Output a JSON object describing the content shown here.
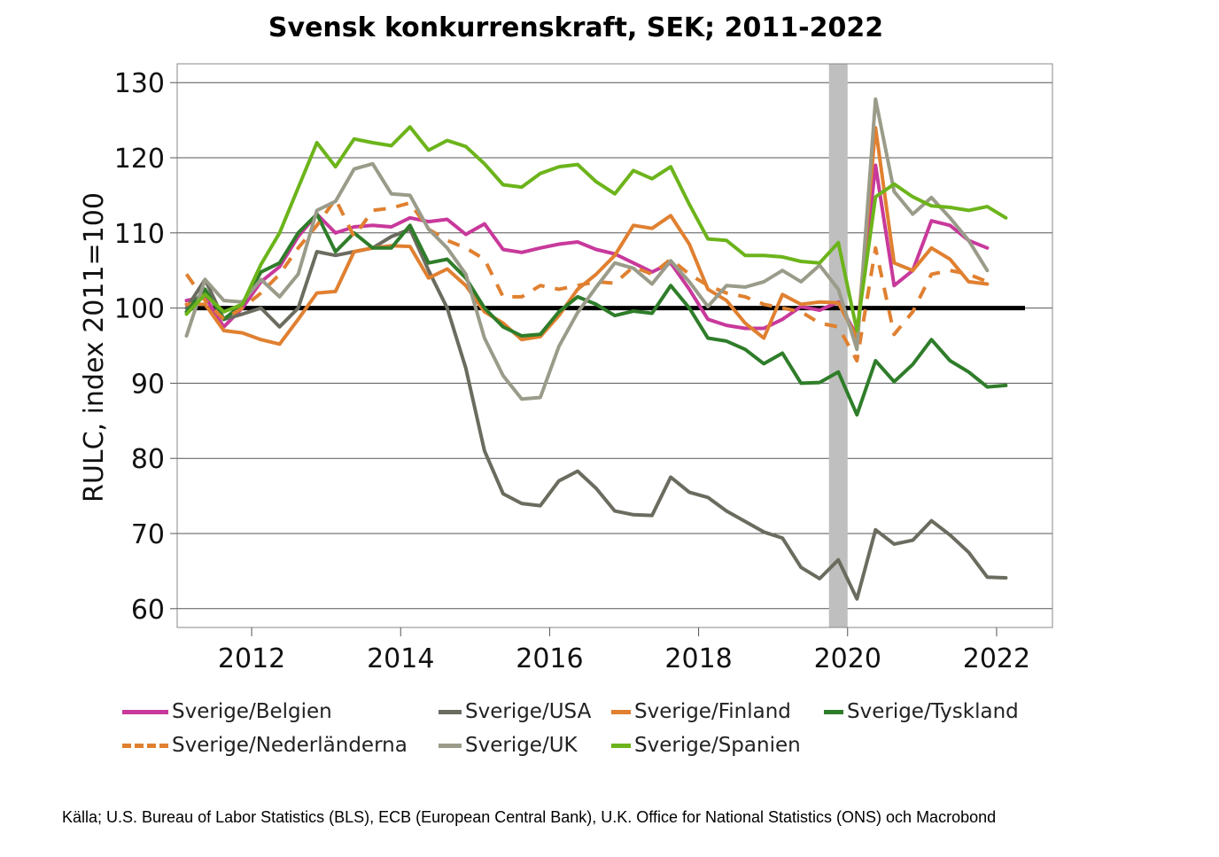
{
  "chart_data": {
    "type": "line",
    "title": "Svensk konkurrenskraft, SEK; 2011-2022",
    "ylabel": "RULC, index 2011=100",
    "xlabel": "",
    "xlim": [
      2011.0,
      2022.75
    ],
    "ylim": [
      57.5,
      132.5
    ],
    "yticks": [
      60,
      70,
      80,
      90,
      100,
      110,
      120,
      130
    ],
    "xticks": [
      2012,
      2014,
      2016,
      2018,
      2020,
      2022
    ],
    "grid": "horizontal",
    "legend_position": "bottom",
    "reference_line": {
      "y": 100,
      "color": "#000000"
    },
    "shaded_band": {
      "x_start": 2019.75,
      "x_end": 2020.0,
      "color": "#bfbfbf"
    },
    "x": [
      2011.125,
      2011.375,
      2011.625,
      2011.875,
      2012.125,
      2012.375,
      2012.625,
      2012.875,
      2013.125,
      2013.375,
      2013.625,
      2013.875,
      2014.125,
      2014.375,
      2014.625,
      2014.875,
      2015.125,
      2015.375,
      2015.625,
      2015.875,
      2016.125,
      2016.375,
      2016.625,
      2016.875,
      2017.125,
      2017.375,
      2017.625,
      2017.875,
      2018.125,
      2018.375,
      2018.625,
      2018.875,
      2019.125,
      2019.375,
      2019.625,
      2019.875,
      2020.125,
      2020.375,
      2020.625,
      2020.875,
      2021.125,
      2021.375,
      2021.625,
      2021.875,
      2022.125
    ],
    "series": [
      {
        "name": "Sverige/Belgien",
        "color": "#c8399b",
        "dash": false,
        "values": [
          101,
          101.5,
          97.5,
          100,
          103.5,
          105.5,
          109.5,
          112.5,
          110,
          110.8,
          111,
          110.8,
          112,
          111.5,
          111.8,
          109.8,
          111.2,
          107.8,
          107.4,
          108,
          108.5,
          108.8,
          107.8,
          107.2,
          106,
          104.8,
          106,
          102.5,
          98.5,
          97.7,
          97.3,
          97.3,
          98.5,
          100.2,
          99.7,
          100.8,
          96.3,
          119,
          103,
          105,
          111.6,
          111,
          109,
          108,
          null
        ]
      },
      {
        "name": "Sverige/USA",
        "color": "#6b6b5f",
        "dash": false,
        "values": [
          100,
          103.8,
          98.5,
          99.2,
          100,
          97.5,
          100,
          107.5,
          107,
          107.5,
          108,
          109.5,
          110.5,
          105,
          100,
          92,
          81,
          75.3,
          74,
          73.7,
          77,
          78.3,
          76,
          73,
          72.5,
          72.4,
          77.5,
          75.5,
          74.8,
          73,
          71.6,
          70.2,
          69.4,
          65.5,
          64,
          66.5,
          61.3,
          70.5,
          68.6,
          69.1,
          71.7,
          69.8,
          67.5,
          64.2,
          64.1
        ]
      },
      {
        "name": "Sverige/Finland",
        "color": "#e08030",
        "dash": false,
        "values": [
          100.5,
          100.5,
          97,
          96.7,
          95.8,
          95.2,
          98.5,
          102,
          102.2,
          107.5,
          108,
          108.3,
          108.2,
          104,
          105.2,
          103,
          99.5,
          98,
          95.8,
          96.2,
          99,
          102.5,
          104.5,
          107,
          111,
          110.6,
          112.3,
          108.5,
          102.5,
          101,
          98,
          96,
          101.8,
          100.5,
          100.8,
          100.7,
          96,
          124,
          106,
          105,
          108,
          106.5,
          103.5,
          103.2,
          null
        ]
      },
      {
        "name": "Sverige/Tyskland",
        "color": "#2f7d2a",
        "dash": false,
        "values": [
          99.5,
          102.5,
          98.5,
          100.5,
          104.8,
          106,
          110,
          112.5,
          107.5,
          110,
          108,
          108,
          111,
          106,
          106.5,
          104,
          100,
          97.5,
          96.3,
          96.5,
          99.5,
          101.5,
          100.5,
          99,
          99.6,
          99.3,
          103,
          100,
          96,
          95.6,
          94.5,
          92.6,
          94,
          90,
          90.1,
          91.5,
          85.8,
          93,
          90.2,
          92.5,
          95.8,
          93,
          91.5,
          89.5,
          89.7
        ]
      },
      {
        "name": "Sverige/Nederländerna",
        "color": "#e08030",
        "dash": true,
        "values": [
          104.5,
          101,
          98.5,
          100,
          102,
          104.5,
          108,
          111,
          114.5,
          109.5,
          113,
          113.3,
          114,
          110.5,
          109,
          108,
          106.5,
          101.5,
          101.5,
          103,
          102.5,
          103,
          103.5,
          103.3,
          105.5,
          104.5,
          106.5,
          104.5,
          103,
          102,
          101.5,
          100.5,
          100,
          99.5,
          98,
          97.5,
          93,
          108,
          96.5,
          99.5,
          104.5,
          105,
          104.5,
          103.5,
          null
        ]
      },
      {
        "name": "Sverige/UK",
        "color": "#9b9b8a",
        "dash": false,
        "values": [
          96.3,
          103.8,
          101,
          100.8,
          103.8,
          101.5,
          104.5,
          113,
          114.2,
          118.5,
          119.2,
          115.2,
          115,
          110.5,
          108,
          104.5,
          96,
          91,
          87.9,
          88.1,
          94.9,
          99.4,
          102.8,
          106,
          105.3,
          103.2,
          106.3,
          103.5,
          100.2,
          103,
          102.8,
          103.5,
          105,
          103.5,
          105.7,
          102.5,
          94.5,
          127.8,
          115.5,
          112.5,
          114.7,
          112,
          109,
          105,
          null
        ]
      },
      {
        "name": "Sverige/Spanien",
        "color": "#6cb41b",
        "dash": false,
        "values": [
          99.2,
          101.8,
          99.5,
          100.5,
          105.8,
          110,
          116,
          122,
          118.8,
          122.5,
          122,
          121.6,
          124.1,
          121,
          122.3,
          121.5,
          119.2,
          116.4,
          116.1,
          117.9,
          118.8,
          119.1,
          116.8,
          115.2,
          118.3,
          117.2,
          118.8,
          113.8,
          109.2,
          109,
          107,
          107,
          106.8,
          106.2,
          106,
          108.7,
          97,
          114.8,
          116.5,
          114.8,
          113.6,
          113.4,
          113,
          113.5,
          112
        ]
      }
    ]
  },
  "legend": {
    "rows": [
      [
        "Sverige/Belgien",
        "Sverige/USA",
        "Sverige/Finland",
        "Sverige/Tyskland"
      ],
      [
        "Sverige/Nederländerna",
        "Sverige/UK",
        "Sverige/Spanien"
      ]
    ]
  },
  "source_note": "Källa; U.S. Bureau of Labor Statistics (BLS), ECB (European Central Bank), U.K. Office for National Statistics (ONS) och Macrobond"
}
